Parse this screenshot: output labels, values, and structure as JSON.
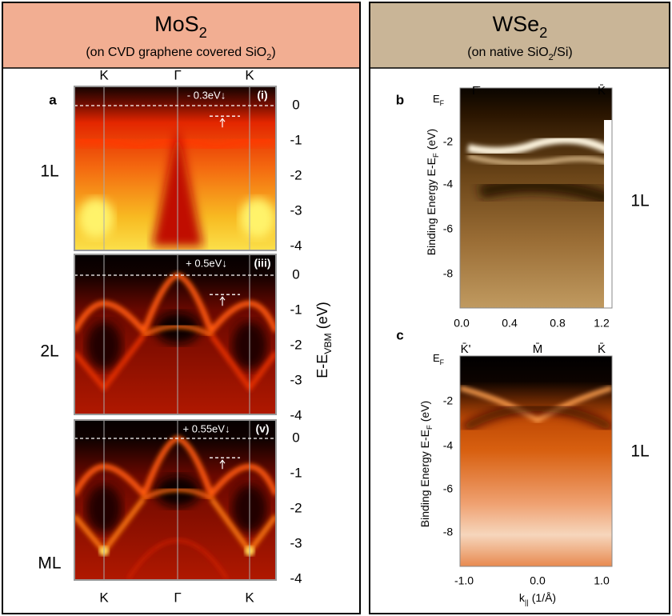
{
  "left": {
    "title": {
      "main": "MoS",
      "sub": "2"
    },
    "subtitle": {
      "pre": "(on CVD graphene covered SiO",
      "sub": "2",
      "post": ")"
    },
    "panel_label": "a",
    "top_labels": [
      "K",
      "Γ",
      "K"
    ],
    "bottom_labels": [
      "K",
      "Γ",
      "K"
    ],
    "y_axis_label": {
      "main": "E-E",
      "sub": "VBM",
      "unit": " (eV)"
    },
    "y_ticks": [
      "0",
      "-1",
      "-2",
      "-3",
      "-4"
    ],
    "panels": [
      {
        "row_label": "1L",
        "shift": "- 0.3eV↓",
        "tag": "(i)"
      },
      {
        "row_label": "2L",
        "shift": "+ 0.5eV↓",
        "tag": "(iii)"
      },
      {
        "row_label": "ML",
        "shift": "+ 0.55eV↓",
        "tag": "(v)"
      }
    ]
  },
  "right": {
    "title": {
      "main": "WSe",
      "sub": "2"
    },
    "subtitle": {
      "pre": "(on native SiO",
      "sub": "2",
      "post": "/Si)"
    },
    "panels": [
      {
        "label": "b",
        "ef": {
          "main": "E",
          "sub": "F"
        },
        "top_labels": [
          "Γ̄",
          "K̄"
        ],
        "y_axis_label": {
          "main": "Binding Energy E-E",
          "sub": "F",
          "unit": " (eV)"
        },
        "y_ticks": [
          "-2",
          "-4",
          "-6",
          "-8"
        ],
        "x_ticks": [
          "0.0",
          "0.4",
          "0.8",
          "1.2"
        ],
        "row_label": "1L"
      },
      {
        "label": "c",
        "ef": {
          "main": "E",
          "sub": "F"
        },
        "top_labels": [
          "K̄'",
          "M̄",
          "K̄"
        ],
        "y_axis_label": {
          "main": "Binding Energy E-E",
          "sub": "F",
          "unit": " (eV)"
        },
        "y_ticks": [
          "-2",
          "-4",
          "-6",
          "-8"
        ],
        "x_ticks": [
          "-1.0",
          "0.0",
          "1.0"
        ],
        "x_axis_label": {
          "main": "k",
          "sub": "||",
          "unit": " (1/Å)"
        },
        "row_label": "1L"
      }
    ]
  }
}
